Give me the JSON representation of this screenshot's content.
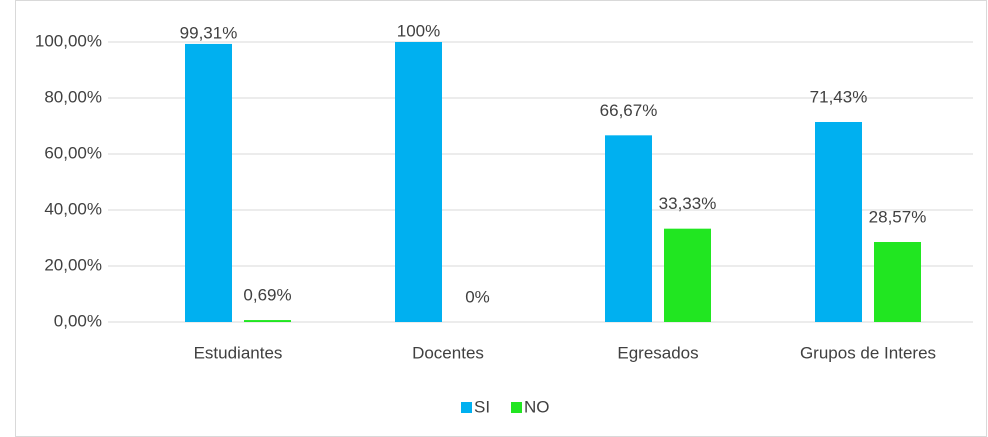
{
  "chart_data": {
    "type": "bar",
    "categories": [
      "Estudiantes",
      "Docentes",
      "Egresados",
      "Grupos de Interes"
    ],
    "series": [
      {
        "name": "SI",
        "color": "#00b0f0",
        "values": [
          99.31,
          100,
          66.67,
          71.43
        ],
        "value_labels": [
          "99,31%",
          "100%",
          "66,67%",
          "71,43%"
        ]
      },
      {
        "name": "NO",
        "color": "#21e621",
        "values": [
          0.69,
          0,
          33.33,
          28.57
        ],
        "value_labels": [
          "0,69%",
          "0%",
          "33,33%",
          "28,57%"
        ]
      }
    ],
    "ylim": [
      0,
      100
    ],
    "yticks": [
      {
        "value": 0,
        "label": "0,00%"
      },
      {
        "value": 20,
        "label": "20,00%"
      },
      {
        "value": 40,
        "label": "40,00%"
      },
      {
        "value": 60,
        "label": "60,00%"
      },
      {
        "value": 80,
        "label": "80,00%"
      },
      {
        "value": 100,
        "label": "100,00%"
      }
    ],
    "grid": true,
    "legend": "bottom"
  }
}
